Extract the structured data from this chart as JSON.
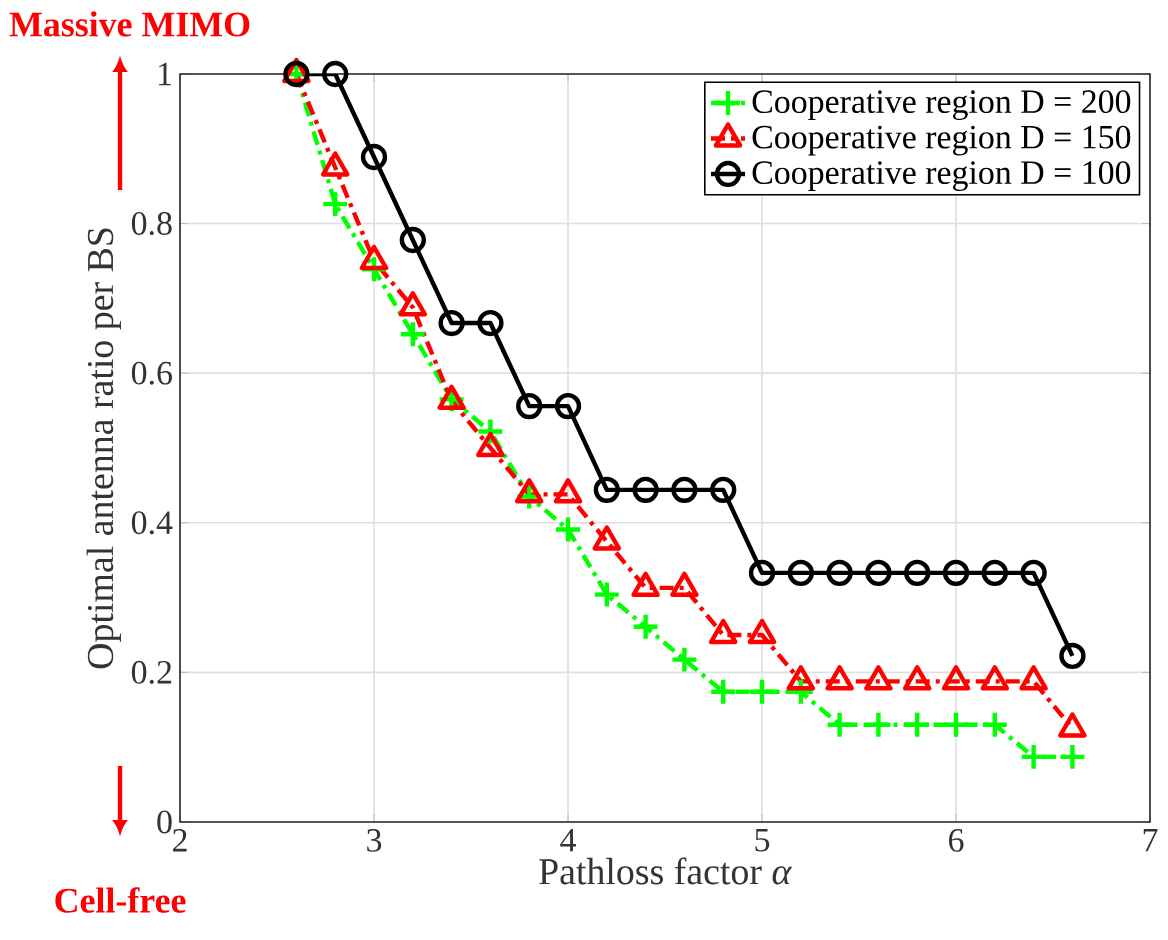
{
  "chart_data": {
    "type": "line",
    "xlabel": "Pathloss factor *α*",
    "ylabel": "Optimal antenna ratio per BS",
    "x": [
      2.6,
      2.8,
      3.0,
      3.2,
      3.4,
      3.6,
      3.8,
      4.0,
      4.2,
      4.4,
      4.6,
      4.8,
      5.0,
      5.2,
      5.4,
      5.6,
      5.8,
      6.0,
      6.2,
      6.4,
      6.6
    ],
    "series": [
      {
        "name": "Cooperative region D = 200",
        "color": "#00ff00",
        "marker": "cross",
        "line_style": "dashed",
        "values": [
          1,
          0.826,
          0.739,
          0.652,
          0.565,
          0.522,
          0.435,
          0.391,
          0.304,
          0.261,
          0.217,
          0.174,
          0.174,
          0.174,
          0.13,
          0.13,
          0.13,
          0.13,
          0.13,
          0.087,
          0.087
        ]
      },
      {
        "name": "Cooperative region D = 150",
        "color": "#ff0000",
        "marker": "triangle",
        "line_style": "dashed",
        "values": [
          1,
          0.875,
          0.75,
          0.688,
          0.563,
          0.5,
          0.438,
          0.438,
          0.375,
          0.313,
          0.313,
          0.25,
          0.25,
          0.188,
          0.188,
          0.188,
          0.188,
          0.188,
          0.188,
          0.188,
          0.125
        ]
      },
      {
        "name": "Cooperative region D = 100",
        "color": "#000000",
        "marker": "circle",
        "line_style": "solid",
        "values": [
          1,
          1,
          0.889,
          0.778,
          0.667,
          0.667,
          0.556,
          0.556,
          0.444,
          0.444,
          0.444,
          0.444,
          0.333,
          0.333,
          0.333,
          0.333,
          0.333,
          0.333,
          0.333,
          0.333,
          0.222
        ]
      }
    ],
    "xlim": [
      2,
      7
    ],
    "xticks": [
      2,
      3,
      4,
      5,
      6,
      7
    ],
    "ylim": [
      0,
      1
    ],
    "yticks": [
      0,
      0.2,
      0.4,
      0.6,
      0.8,
      1
    ],
    "grid": true,
    "legend": "top right",
    "annotations": [
      "Massive MIMO",
      "Cell-free"
    ]
  }
}
